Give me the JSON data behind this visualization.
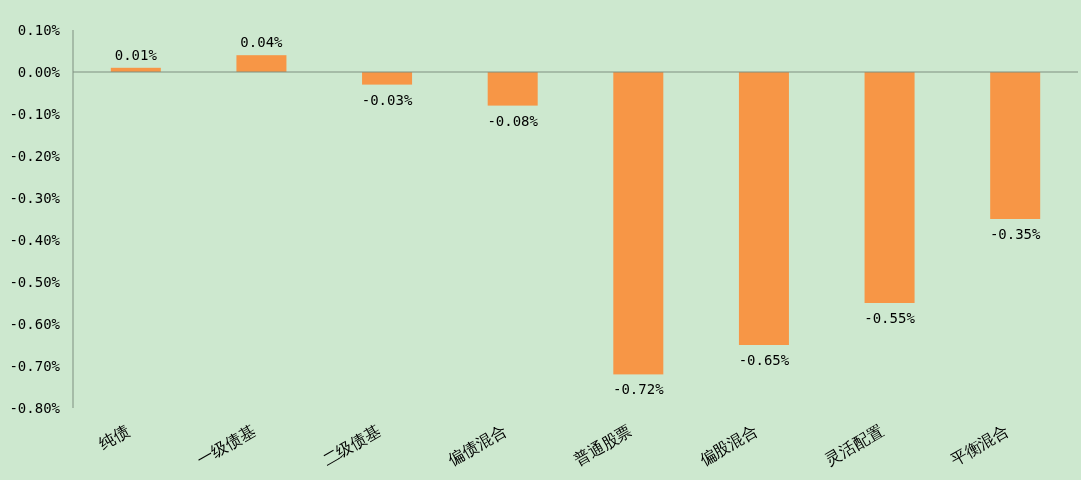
{
  "chart_data": {
    "type": "bar",
    "categories": [
      "纯债",
      "一级债基",
      "二级债基",
      "偏债混合",
      "普通股票",
      "偏股混合",
      "灵活配置",
      "平衡混合"
    ],
    "values": [
      0.01,
      0.04,
      -0.03,
      -0.08,
      -0.72,
      -0.65,
      -0.55,
      -0.35
    ],
    "color": "#f79646",
    "value_labels": [
      "0.01%",
      "0.04%",
      "-0.03%",
      "-0.08%",
      "-0.72%",
      "-0.65%",
      "-0.55%",
      "-0.35%"
    ],
    "ylim": [
      -0.8,
      0.1
    ],
    "yticks": [
      {
        "value": 0.1,
        "label": "0.10%"
      },
      {
        "value": 0,
        "label": "0.00%"
      },
      {
        "value": -0.1,
        "label": "-0.10%"
      },
      {
        "value": -0.2,
        "label": "-0.20%"
      },
      {
        "value": -0.3,
        "label": "-0.30%"
      },
      {
        "value": -0.4,
        "label": "-0.40%"
      },
      {
        "value": -0.5,
        "label": "-0.50%"
      },
      {
        "value": -0.6,
        "label": "-0.60%"
      },
      {
        "value": -0.7,
        "label": "-0.70%"
      },
      {
        "value": -0.8,
        "label": "-0.80%"
      }
    ]
  }
}
